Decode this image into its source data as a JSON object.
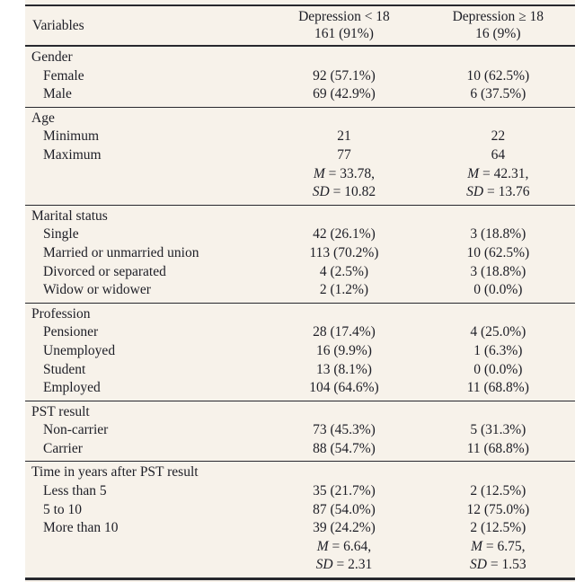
{
  "colors": {
    "page_background": "#ffffff",
    "table_background": "#f7f2ea",
    "text": "#1d1e26",
    "rule": "#27282e"
  },
  "table": {
    "header": {
      "variables": "Variables",
      "columns": [
        {
          "line1": "Depression < 18",
          "line2": "161 (91%)"
        },
        {
          "line1": "Depression ≥ 18",
          "line2": "16 (9%)"
        }
      ]
    },
    "sections": [
      {
        "title": "Gender",
        "rows": [
          {
            "label": "Female",
            "c1": "92 (57.1%)",
            "c2": "10 (62.5%)"
          },
          {
            "label": "Male",
            "c1": "69 (42.9%)",
            "c2": "6 (37.5%)"
          }
        ]
      },
      {
        "title": "Age",
        "rows": [
          {
            "label": "Minimum",
            "c1": "21",
            "c2": "22"
          },
          {
            "label": "Maximum",
            "c1": "77",
            "c2": "64"
          },
          {
            "label": "",
            "c1": {
              "pre": "M",
              "rest": " = 33.78,"
            },
            "c2": {
              "pre": "M",
              "rest": " = 42.31,"
            }
          },
          {
            "label": "",
            "c1": {
              "pre": "SD",
              "rest": " = 10.82"
            },
            "c2": {
              "pre": "SD",
              "rest": " = 13.76"
            }
          }
        ]
      },
      {
        "title": "Marital status",
        "rows": [
          {
            "label": "Single",
            "c1": "42 (26.1%)",
            "c2": "3 (18.8%)"
          },
          {
            "label": "Married or unmarried union",
            "c1": "113 (70.2%)",
            "c2": "10 (62.5%)"
          },
          {
            "label": "Divorced or separated",
            "c1": "4 (2.5%)",
            "c2": "3 (18.8%)"
          },
          {
            "label": "Widow or widower",
            "c1": "2 (1.2%)",
            "c2": "0 (0.0%)"
          }
        ]
      },
      {
        "title": "Profession",
        "rows": [
          {
            "label": "Pensioner",
            "c1": "28 (17.4%)",
            "c2": "4 (25.0%)"
          },
          {
            "label": "Unemployed",
            "c1": "16 (9.9%)",
            "c2": "1 (6.3%)"
          },
          {
            "label": "Student",
            "c1": "13 (8.1%)",
            "c2": "0 (0.0%)"
          },
          {
            "label": "Employed",
            "c1": "104 (64.6%)",
            "c2": "11 (68.8%)"
          }
        ]
      },
      {
        "title": "PST result",
        "rows": [
          {
            "label": "Non-carrier",
            "c1": "73 (45.3%)",
            "c2": "5 (31.3%)"
          },
          {
            "label": "Carrier",
            "c1": "88 (54.7%)",
            "c2": "11 (68.8%)"
          }
        ]
      },
      {
        "title": "Time in years after PST result",
        "rows": [
          {
            "label": "Less than 5",
            "c1": "35 (21.7%)",
            "c2": "2 (12.5%)"
          },
          {
            "label": "5 to 10",
            "c1": "87 (54.0%)",
            "c2": "12 (75.0%)"
          },
          {
            "label": "More than 10",
            "c1": "39 (24.2%)",
            "c2": "2 (12.5%)"
          },
          {
            "label": "",
            "c1": {
              "pre": "M",
              "rest": " = 6.64,"
            },
            "c2": {
              "pre": "M",
              "rest": " = 6.75,"
            }
          },
          {
            "label": "",
            "c1": {
              "pre": "SD",
              "rest": " = 2.31"
            },
            "c2": {
              "pre": "SD",
              "rest": " = 1.53"
            }
          }
        ]
      }
    ]
  }
}
